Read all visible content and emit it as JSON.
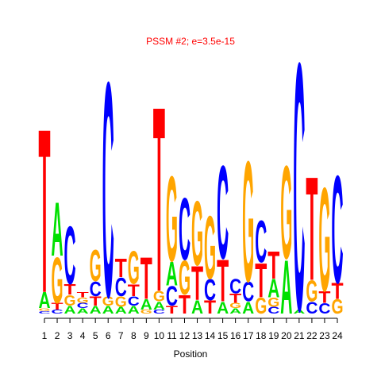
{
  "chart_data": {
    "type": "logo",
    "title": "PSSM #2; e=3.5e-15",
    "xlabel": "Position",
    "x": [
      1,
      2,
      3,
      4,
      5,
      6,
      7,
      8,
      9,
      10,
      11,
      12,
      13,
      14,
      15,
      16,
      17,
      18,
      19,
      20,
      21,
      22,
      23,
      24
    ],
    "xticks": [
      1,
      2,
      3,
      4,
      5,
      6,
      7,
      8,
      9,
      10,
      11,
      12,
      13,
      14,
      15,
      16,
      17,
      18,
      19,
      20,
      21,
      22,
      23,
      24
    ],
    "xlim": [
      1,
      24
    ],
    "ylim": [
      0,
      2
    ],
    "series": [
      {
        "name": "A",
        "color": "#00e000",
        "values": [
          0.12,
          0.41,
          0.06,
          0.04,
          0.06,
          0.06,
          0.05,
          0.06,
          0.08,
          0.06,
          0.18,
          0,
          0.1,
          0,
          0.09,
          0.04,
          0.09,
          0,
          0.14,
          0.41,
          0.03,
          0,
          0,
          0
        ]
      },
      {
        "name": "C",
        "color": "#0000ff",
        "values": [
          0.02,
          0.03,
          0.44,
          0.04,
          0.11,
          1.64,
          0.14,
          0.07,
          0,
          0.03,
          0.15,
          0.47,
          0,
          0.16,
          0.71,
          0.11,
          0.15,
          0.32,
          0.05,
          0,
          1.89,
          0.09,
          0.08,
          0.82
        ]
      },
      {
        "name": "G",
        "color": "#ffa500",
        "values": [
          0.02,
          0.35,
          0.08,
          0.04,
          0.24,
          0.07,
          0.08,
          0.25,
          0.03,
          0.08,
          0.65,
          0.26,
          0.49,
          0.48,
          0,
          0.04,
          0.92,
          0.12,
          0.07,
          0.71,
          0,
          0.16,
          0.79,
          0.11
        ]
      },
      {
        "name": "T",
        "color": "#ff0000",
        "values": [
          1.25,
          0.05,
          0.08,
          0.04,
          0.07,
          0,
          0.14,
          0.09,
          0.32,
          1.41,
          0.06,
          0.14,
          0.26,
          0.1,
          0.32,
          0.07,
          0,
          0.26,
          0.21,
          0,
          0,
          0.79,
          0.09,
          0.12
        ]
      }
    ]
  }
}
